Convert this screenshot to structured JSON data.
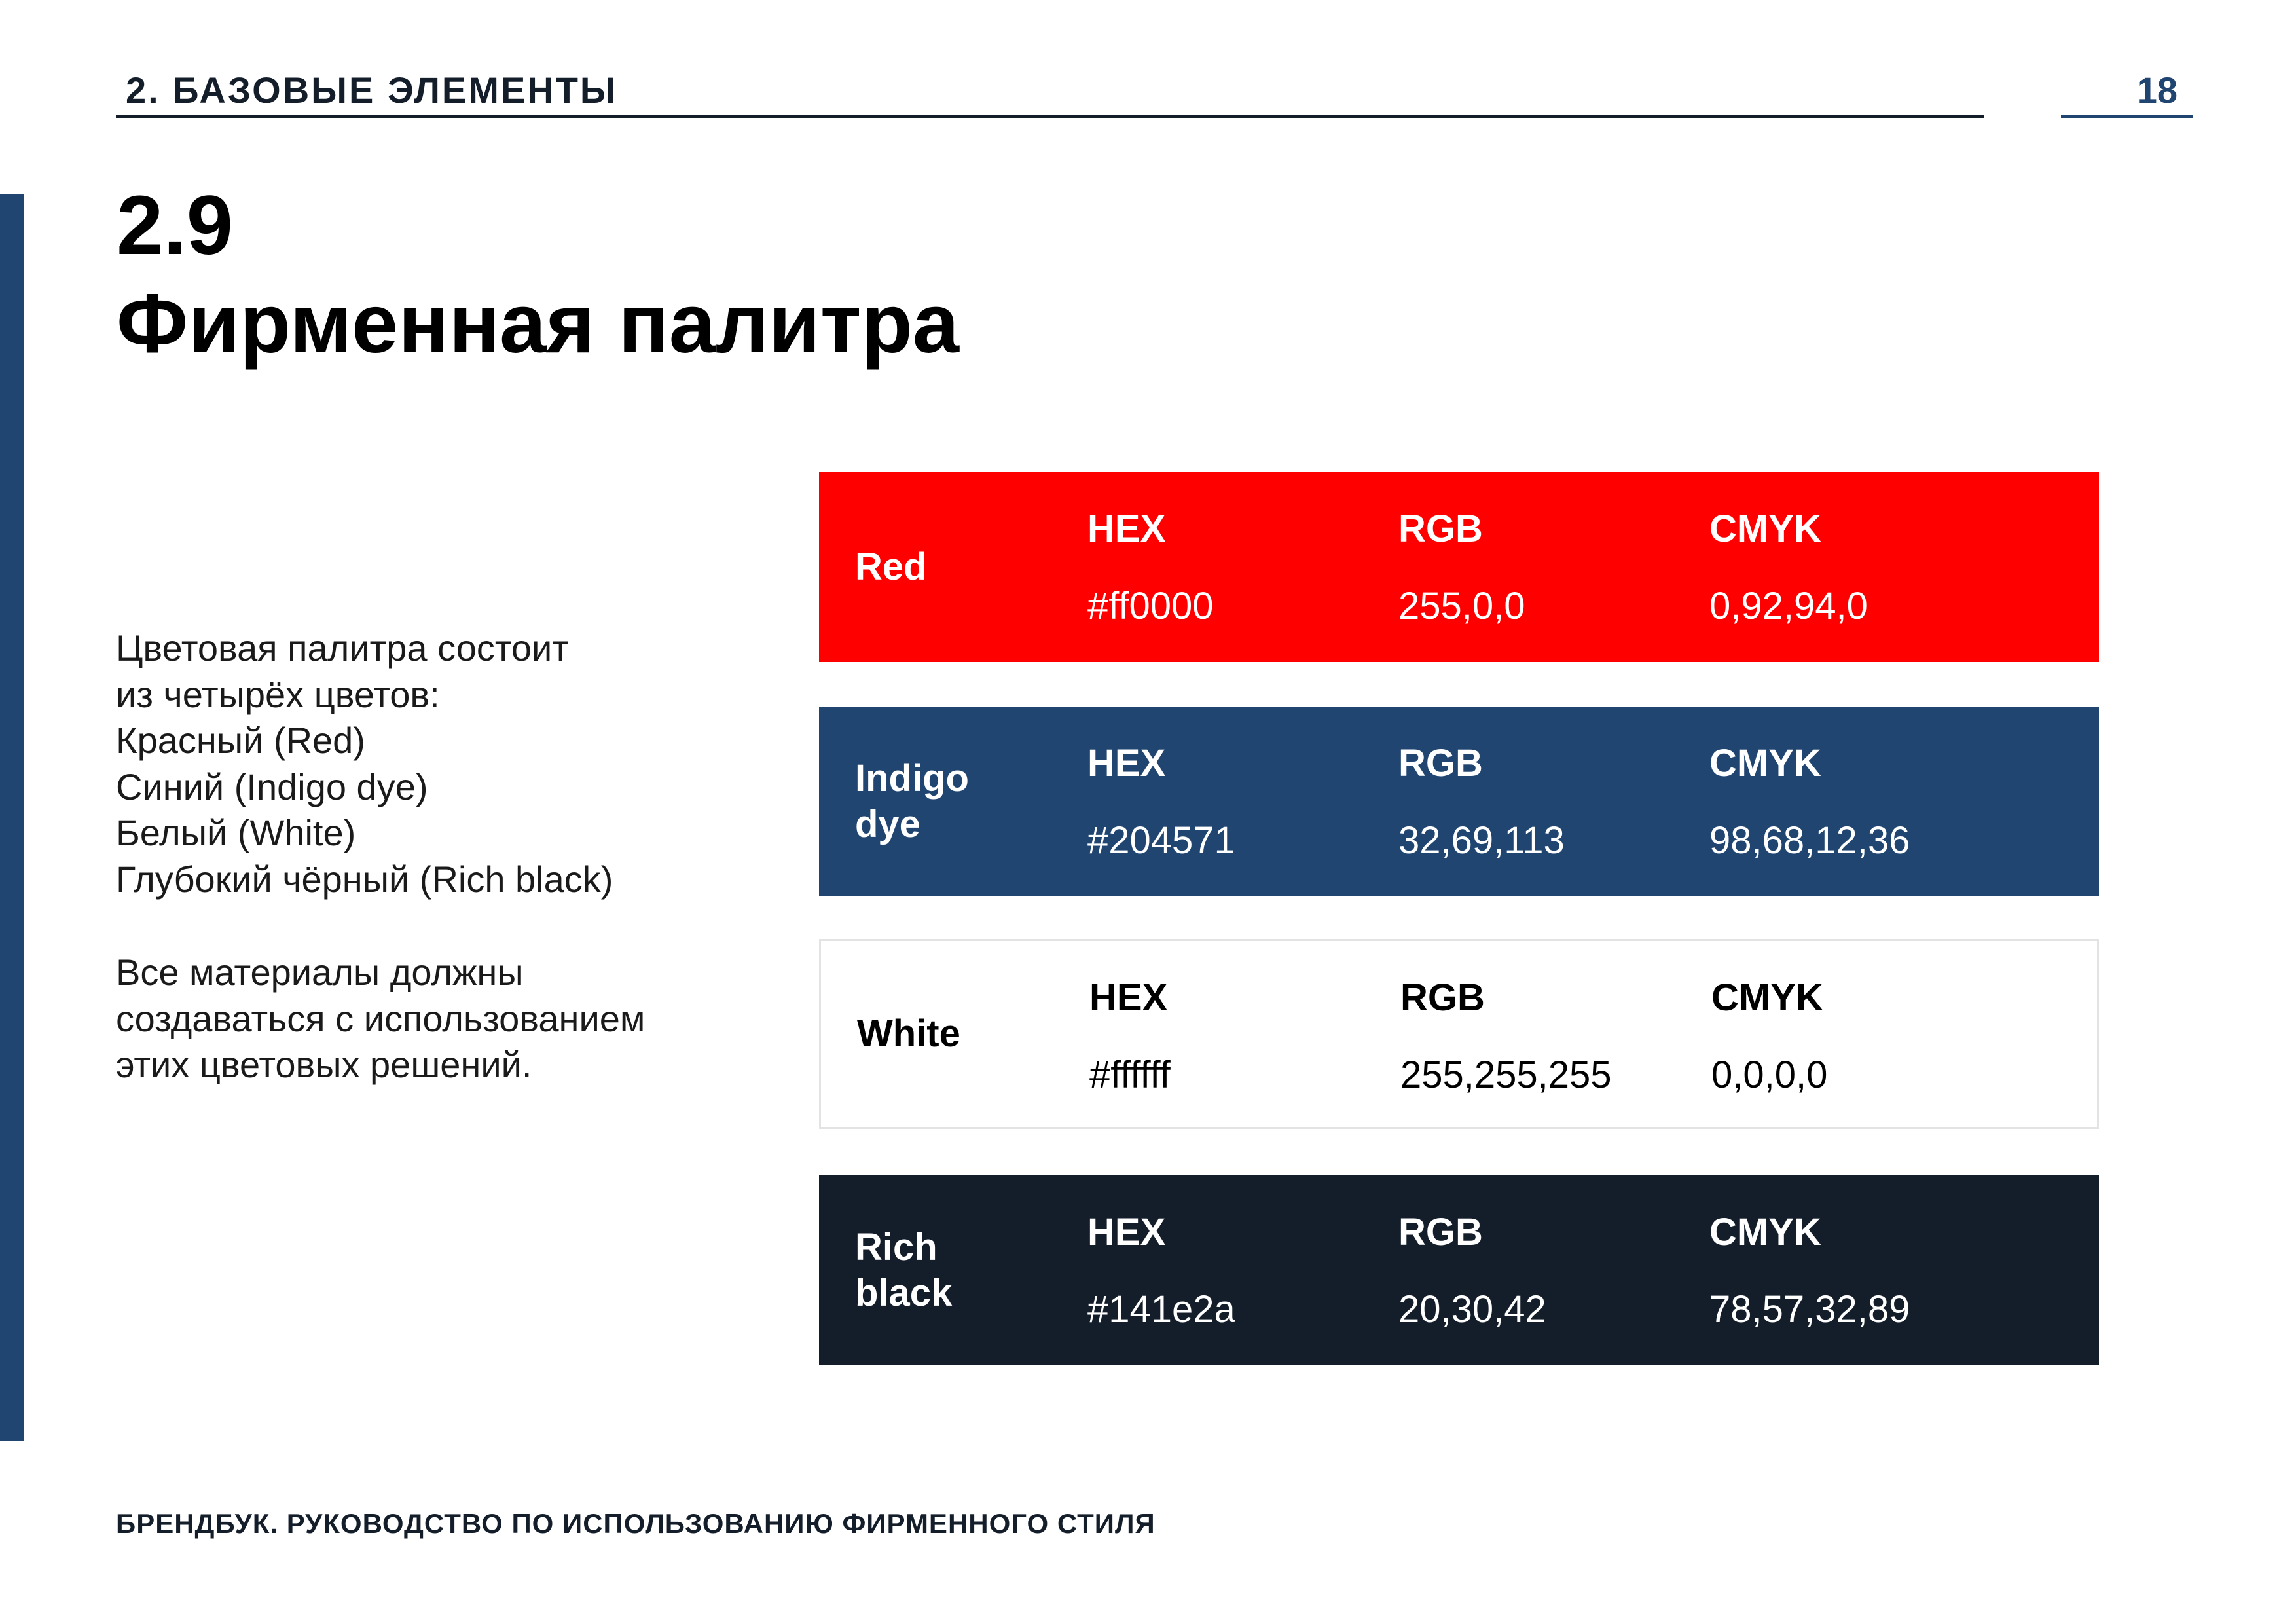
{
  "header": {
    "section_label": "2.  БАЗОВЫЕ ЭЛЕМЕНТЫ",
    "page_number": "18"
  },
  "section": {
    "number": "2.9",
    "title": "Фирменная палитра"
  },
  "description": {
    "lines": [
      "Цветовая палитра состоит",
      "из четырёх цветов:",
      "Красный (Red)",
      "Синий (Indigo dye)",
      "Белый (White)",
      "Глубокий чёрный (Rich black)"
    ],
    "note_lines": [
      "Все материалы должны",
      "создаваться с использованием",
      "этих цветовых решений."
    ]
  },
  "palette": [
    {
      "name_line1": "Red",
      "name_line2": "",
      "hex_label": "HEX",
      "hex": "#ff0000",
      "rgb_label": "RGB",
      "rgb": "255,0,0",
      "cmyk_label": "CMYK",
      "cmyk": "0,92,94,0",
      "background": "#ff0000"
    },
    {
      "name_line1": "Indigo",
      "name_line2": "dye",
      "hex_label": "HEX",
      "hex": "#204571",
      "rgb_label": "RGB",
      "rgb": "32,69,113",
      "cmyk_label": "CMYK",
      "cmyk": "98,68,12,36",
      "background": "#204571"
    },
    {
      "name_line1": "White",
      "name_line2": "",
      "hex_label": "HEX",
      "hex": "#ffffff",
      "rgb_label": "RGB",
      "rgb": "255,255,255",
      "cmyk_label": "CMYK",
      "cmyk": "0,0,0,0",
      "background": "#ffffff"
    },
    {
      "name_line1": "Rich",
      "name_line2": "black",
      "hex_label": "HEX",
      "hex": "#141e2a",
      "rgb_label": "RGB",
      "rgb": "20,30,42",
      "cmyk_label": "CMYK",
      "cmyk": "78,57,32,89",
      "background": "#141e2a"
    }
  ],
  "footer": {
    "text": "БРЕНДБУК. РУКОВОДСТВО ПО ИСПОЛЬЗОВАНИЮ ФИРМЕННОГО СТИЛЯ"
  },
  "colors": {
    "accent": "#204571",
    "text_dark": "#141e2a"
  }
}
